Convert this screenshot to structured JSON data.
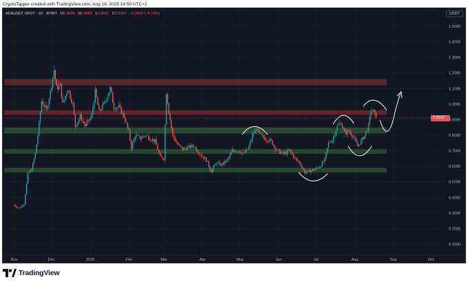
{
  "attribution": "CryptoTapper created with TradingView.com, Aug 18, 2025 14:50 UTC+2",
  "legend": {
    "title": "ADAUSDT SPOT · 1D · BYBIT",
    "open_label": "O",
    "open": "0.9606",
    "high_label": "H",
    "high": "0.9683",
    "low_label": "L",
    "low": "0.8911",
    "close_label": "C",
    "close": "0.9107",
    "change": "−0.0499 (−5.19%)"
  },
  "currency": "USDT",
  "current_price": "0.9107",
  "brand": "TradingView",
  "icons": {
    "logo": "tradingview-logo-icon"
  },
  "colors": {
    "background": "#131722",
    "up": "#26a69a",
    "down": "#ef5350",
    "resistance_zone": "#7a2833",
    "support_zone": "#2d5a38"
  },
  "chart_data": {
    "type": "candlestick",
    "symbol": "ADAUSDT",
    "y_ticks": [
      "1.5000",
      "1.4000",
      "1.3000",
      "1.2000",
      "1.1000",
      "1.0000",
      "0.9000",
      "0.8000",
      "0.7000",
      "0.6000",
      "0.5000",
      "0.4000",
      "0.3000",
      "0.2000",
      "0.1000"
    ],
    "x_ticks": [
      "Nov",
      "Dec",
      "2025",
      "Feb",
      "Mar",
      "Apr",
      "May",
      "Jun",
      "Jul",
      "Aug",
      "Sep",
      "Oct"
    ],
    "ylim": [
      0.05,
      1.55
    ],
    "zones": [
      {
        "type": "resistance",
        "from": 1.12,
        "to": 1.16
      },
      {
        "type": "resistance",
        "from": 0.93,
        "to": 0.96
      },
      {
        "type": "support",
        "from": 0.81,
        "to": 0.85
      },
      {
        "type": "support",
        "from": 0.68,
        "to": 0.71
      },
      {
        "type": "support",
        "from": 0.56,
        "to": 0.59
      }
    ],
    "price_path": [
      [
        "2024-11-01",
        0.35
      ],
      [
        "2024-11-05",
        0.33
      ],
      [
        "2024-11-09",
        0.36
      ],
      [
        "2024-11-12",
        0.55
      ],
      [
        "2024-11-15",
        0.58
      ],
      [
        "2024-11-18",
        0.68
      ],
      [
        "2024-11-20",
        0.8
      ],
      [
        "2024-11-23",
        1.02
      ],
      [
        "2024-11-27",
        0.96
      ],
      [
        "2024-11-30",
        1.08
      ],
      [
        "2024-12-03",
        1.22
      ],
      [
        "2024-12-05",
        1.1
      ],
      [
        "2024-12-08",
        1.12
      ],
      [
        "2024-12-10",
        1.0
      ],
      [
        "2024-12-14",
        1.1
      ],
      [
        "2024-12-18",
        1.0
      ],
      [
        "2024-12-20",
        0.86
      ],
      [
        "2024-12-24",
        0.92
      ],
      [
        "2024-12-28",
        0.86
      ],
      [
        "2025-01-02",
        0.92
      ],
      [
        "2025-01-05",
        1.08
      ],
      [
        "2025-01-08",
        0.95
      ],
      [
        "2025-01-12",
        1.0
      ],
      [
        "2025-01-17",
        1.1
      ],
      [
        "2025-01-20",
        0.98
      ],
      [
        "2025-01-24",
        0.98
      ],
      [
        "2025-01-28",
        0.92
      ],
      [
        "2025-02-01",
        0.82
      ],
      [
        "2025-02-03",
        0.72
      ],
      [
        "2025-02-06",
        0.8
      ],
      [
        "2025-02-10",
        0.78
      ],
      [
        "2025-02-14",
        0.8
      ],
      [
        "2025-02-18",
        0.78
      ],
      [
        "2025-02-22",
        0.76
      ],
      [
        "2025-02-26",
        0.66
      ],
      [
        "2025-03-01",
        0.65
      ],
      [
        "2025-03-03",
        1.08
      ],
      [
        "2025-03-05",
        0.95
      ],
      [
        "2025-03-08",
        0.8
      ],
      [
        "2025-03-12",
        0.74
      ],
      [
        "2025-03-16",
        0.71
      ],
      [
        "2025-03-20",
        0.72
      ],
      [
        "2025-03-25",
        0.73
      ],
      [
        "2025-03-30",
        0.68
      ],
      [
        "2025-04-04",
        0.64
      ],
      [
        "2025-04-08",
        0.57
      ],
      [
        "2025-04-12",
        0.62
      ],
      [
        "2025-04-16",
        0.61
      ],
      [
        "2025-04-21",
        0.64
      ],
      [
        "2025-04-25",
        0.7
      ],
      [
        "2025-04-30",
        0.7
      ],
      [
        "2025-05-04",
        0.68
      ],
      [
        "2025-05-08",
        0.72
      ],
      [
        "2025-05-11",
        0.8
      ],
      [
        "2025-05-14",
        0.84
      ],
      [
        "2025-05-17",
        0.8
      ],
      [
        "2025-05-21",
        0.78
      ],
      [
        "2025-05-26",
        0.76
      ],
      [
        "2025-05-31",
        0.7
      ],
      [
        "2025-06-05",
        0.68
      ],
      [
        "2025-06-10",
        0.7
      ],
      [
        "2025-06-14",
        0.65
      ],
      [
        "2025-06-18",
        0.62
      ],
      [
        "2025-06-22",
        0.56
      ],
      [
        "2025-06-26",
        0.57
      ],
      [
        "2025-06-30",
        0.58
      ],
      [
        "2025-07-04",
        0.6
      ],
      [
        "2025-07-08",
        0.64
      ],
      [
        "2025-07-11",
        0.75
      ],
      [
        "2025-07-14",
        0.77
      ],
      [
        "2025-07-18",
        0.86
      ],
      [
        "2025-07-21",
        0.88
      ],
      [
        "2025-07-24",
        0.81
      ],
      [
        "2025-07-27",
        0.83
      ],
      [
        "2025-07-31",
        0.79
      ],
      [
        "2025-08-03",
        0.73
      ],
      [
        "2025-08-06",
        0.76
      ],
      [
        "2025-08-09",
        0.8
      ],
      [
        "2025-08-12",
        0.86
      ],
      [
        "2025-08-14",
        0.96
      ],
      [
        "2025-08-16",
        0.95
      ],
      [
        "2025-08-18",
        0.91
      ]
    ]
  }
}
